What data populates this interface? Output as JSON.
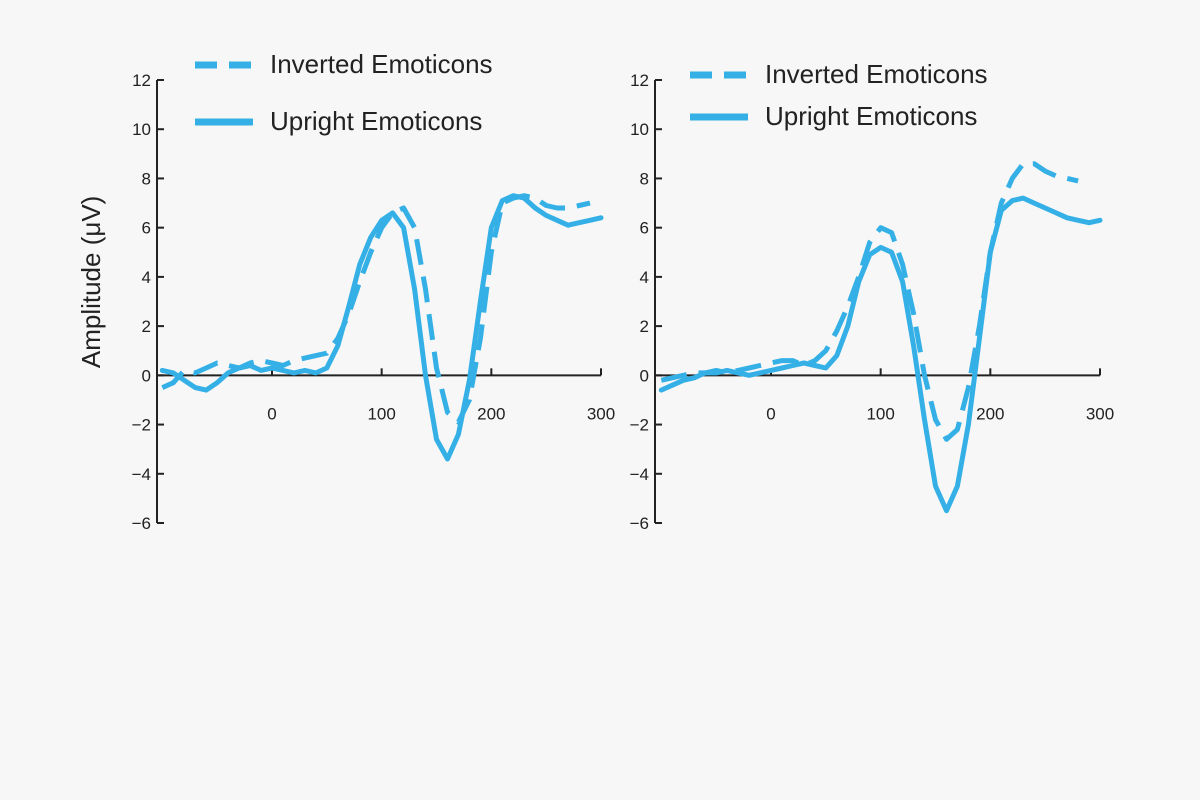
{
  "colors": {
    "series": "#35b0e6",
    "axis": "#222222",
    "background": "#f7f7f7"
  },
  "chart_data": [
    {
      "type": "line",
      "ylabel": "Amplitude (μV)",
      "ylim": [
        -6,
        12
      ],
      "xlim": [
        -100,
        300
      ],
      "yticks": [
        -6,
        -4,
        -2,
        0,
        2,
        4,
        6,
        8,
        10,
        12
      ],
      "xticks": [
        0,
        100,
        200,
        300
      ],
      "legend_position": "top-left",
      "series": [
        {
          "name": "Inverted Emoticons",
          "style": "dashed",
          "x": [
            -100,
            -90,
            -80,
            -70,
            -60,
            -50,
            -40,
            -30,
            -20,
            -10,
            0,
            10,
            20,
            30,
            40,
            50,
            60,
            70,
            80,
            90,
            100,
            110,
            120,
            130,
            140,
            150,
            160,
            170,
            180,
            190,
            200,
            210,
            220,
            230,
            240,
            250,
            260,
            270,
            280,
            290
          ],
          "y": [
            -0.5,
            -0.3,
            0.2,
            0.1,
            0.3,
            0.5,
            0.4,
            0.3,
            0.5,
            0.6,
            0.5,
            0.4,
            0.6,
            0.7,
            0.8,
            0.9,
            1.5,
            2.5,
            3.8,
            5.0,
            6.0,
            6.6,
            6.8,
            6.0,
            3.5,
            0.3,
            -1.5,
            -1.9,
            -1.0,
            1.5,
            5.0,
            7.0,
            7.2,
            7.3,
            7.2,
            6.9,
            6.8,
            6.8,
            6.9,
            7.0
          ]
        },
        {
          "name": "Upright Emoticons",
          "style": "solid",
          "x": [
            -100,
            -90,
            -80,
            -70,
            -60,
            -50,
            -40,
            -30,
            -20,
            -10,
            0,
            10,
            20,
            30,
            40,
            50,
            60,
            70,
            80,
            90,
            100,
            110,
            120,
            130,
            140,
            150,
            160,
            170,
            180,
            190,
            200,
            210,
            220,
            230,
            240,
            250,
            260,
            270,
            280,
            290,
            300
          ],
          "y": [
            0.2,
            0.1,
            -0.2,
            -0.5,
            -0.6,
            -0.3,
            0.1,
            0.3,
            0.4,
            0.2,
            0.3,
            0.2,
            0.1,
            0.2,
            0.1,
            0.3,
            1.2,
            2.8,
            4.5,
            5.6,
            6.3,
            6.6,
            6.0,
            3.5,
            0.0,
            -2.6,
            -3.4,
            -2.4,
            -0.2,
            3.0,
            6.0,
            7.1,
            7.3,
            7.2,
            6.8,
            6.5,
            6.3,
            6.1,
            6.2,
            6.3,
            6.4
          ]
        }
      ]
    },
    {
      "type": "line",
      "ylim": [
        -6,
        12
      ],
      "xlim": [
        -100,
        300
      ],
      "yticks": [
        -6,
        -4,
        -2,
        0,
        2,
        4,
        6,
        8,
        10,
        12
      ],
      "xticks": [
        0,
        100,
        200,
        300
      ],
      "legend_position": "top-left",
      "series": [
        {
          "name": "Inverted Emoticons",
          "style": "dashed",
          "x": [
            -100,
            -90,
            -80,
            -70,
            -60,
            -50,
            -40,
            -30,
            -20,
            -10,
            0,
            10,
            20,
            30,
            40,
            50,
            60,
            70,
            80,
            90,
            100,
            110,
            120,
            130,
            140,
            150,
            160,
            170,
            180,
            190,
            200,
            210,
            220,
            230,
            240,
            250,
            260,
            270,
            280
          ],
          "y": [
            -0.2,
            -0.1,
            0.0,
            0.1,
            0.1,
            0.2,
            0.1,
            0.2,
            0.3,
            0.4,
            0.5,
            0.6,
            0.6,
            0.4,
            0.6,
            1.0,
            1.8,
            2.8,
            4.0,
            5.4,
            6.0,
            5.8,
            4.5,
            2.5,
            0.0,
            -1.8,
            -2.6,
            -2.2,
            -0.5,
            2.0,
            5.0,
            7.0,
            8.0,
            8.6,
            8.6,
            8.3,
            8.1,
            8.0,
            7.9
          ]
        },
        {
          "name": "Upright Emoticons",
          "style": "solid",
          "x": [
            -100,
            -90,
            -80,
            -70,
            -60,
            -50,
            -40,
            -30,
            -20,
            -10,
            0,
            10,
            20,
            30,
            40,
            50,
            60,
            70,
            80,
            90,
            100,
            110,
            120,
            130,
            140,
            150,
            160,
            170,
            180,
            190,
            200,
            210,
            220,
            230,
            240,
            250,
            260,
            270,
            280,
            290,
            300
          ],
          "y": [
            -0.6,
            -0.4,
            -0.2,
            -0.1,
            0.1,
            0.1,
            0.2,
            0.1,
            0.0,
            0.1,
            0.2,
            0.3,
            0.4,
            0.5,
            0.4,
            0.3,
            0.8,
            2.0,
            3.8,
            4.9,
            5.2,
            5.0,
            3.8,
            1.2,
            -1.8,
            -4.5,
            -5.5,
            -4.5,
            -2.0,
            1.5,
            5.0,
            6.7,
            7.1,
            7.2,
            7.0,
            6.8,
            6.6,
            6.4,
            6.3,
            6.2,
            6.3
          ]
        }
      ]
    }
  ]
}
